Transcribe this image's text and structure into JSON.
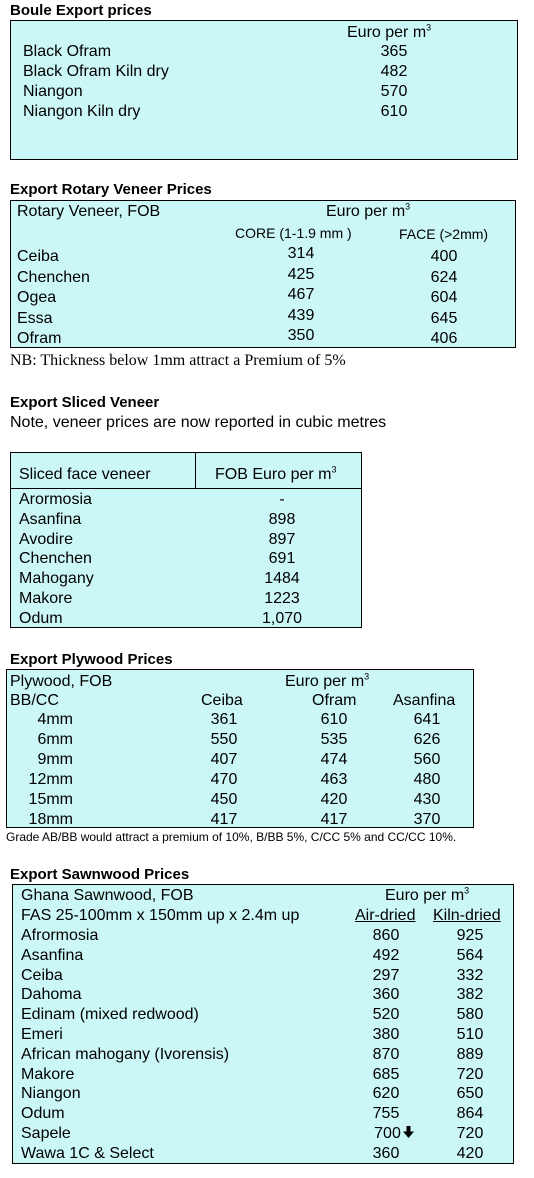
{
  "boule": {
    "title": "Boule Export prices",
    "unit_label": "Euro per m",
    "unit_sup": "3",
    "rows": [
      {
        "name": "Black Ofram",
        "value": "365"
      },
      {
        "name": "Black Ofram  Kiln dry",
        "value": "482"
      },
      {
        "name": "Niangon",
        "value": "570"
      },
      {
        "name": "Niangon Kiln dry",
        "value": "610"
      }
    ]
  },
  "rotary": {
    "title": "Export Rotary Veneer Prices",
    "header_label": "Rotary Veneer,  FOB",
    "unit_label": "Euro  per m",
    "unit_sup": "3",
    "col_core": "CORE (1-1.9 mm )",
    "col_face": "FACE (>2mm)",
    "rows": [
      {
        "name": "Ceiba",
        "core": "314",
        "face": "400"
      },
      {
        "name": "Chenchen",
        "core": "425",
        "face": "624"
      },
      {
        "name": "Ogea",
        "core": "467",
        "face": "604"
      },
      {
        "name": "Essa",
        "core": "439",
        "face": "645"
      },
      {
        "name": "Ofram",
        "core": "350",
        "face": "406"
      }
    ],
    "note": "NB: Thickness below 1mm attract a Premium of 5%"
  },
  "sliced": {
    "title": "Export Sliced Veneer",
    "note": "Note, veneer prices are now reported in cubic metres",
    "col_name": "Sliced face veneer",
    "col_value": "FOB Euro per m",
    "col_value_sup": "3",
    "rows": [
      {
        "name": "Arormosia",
        "value": "-"
      },
      {
        "name": "Asanfina",
        "value": "898"
      },
      {
        "name": "Avodire",
        "value": "897"
      },
      {
        "name": "Chenchen",
        "value": "691"
      },
      {
        "name": "Mahogany",
        "value": "1484"
      },
      {
        "name": "Makore",
        "value": "1223"
      },
      {
        "name": "Odum",
        "value": "1,070"
      }
    ]
  },
  "plywood": {
    "title": "Export Plywood Prices",
    "header_label": "Plywood, FOB",
    "unit_label": "Euro per m",
    "unit_sup": "3",
    "grade": "BB/CC",
    "col1": "Ceiba",
    "col2": "Ofram",
    "col3": "Asanfina",
    "rows": [
      {
        "size": "4mm",
        "ceiba": "361",
        "ofram": "610",
        "asanfina": "641"
      },
      {
        "size": "6mm",
        "ceiba": "550",
        "ofram": "535",
        "asanfina": "626"
      },
      {
        "size": "9mm",
        "ceiba": "407",
        "ofram": "474",
        "asanfina": "560"
      },
      {
        "size": "12mm",
        "ceiba": "470",
        "ofram": "463",
        "asanfina": "480"
      },
      {
        "size": "15mm",
        "ceiba": "450",
        "ofram": "420",
        "asanfina": "430"
      },
      {
        "size": "18mm",
        "ceiba": "417",
        "ofram": "417",
        "asanfina": "370"
      }
    ],
    "note": "Grade AB/BB would attract a premium of 10%, B/BB 5%, C/CC 5% and CC/CC 10%."
  },
  "sawn": {
    "title": "Export Sawnwood Prices",
    "header_label": "Ghana Sawnwood, FOB",
    "unit_label": "Euro per m",
    "unit_sup": "3",
    "spec": "FAS 25-100mm x 150mm up x 2.4m up",
    "col_air": "Air-dried",
    "col_kiln": "Kiln-dried",
    "rows": [
      {
        "name": "Afrormosia",
        "air": "860",
        "kiln": "925"
      },
      {
        "name": "Asanfina",
        "air": "492",
        "kiln": "564"
      },
      {
        "name": "Ceiba",
        "air": "297",
        "kiln": "332"
      },
      {
        "name": "Dahoma",
        "air": "360",
        "kiln": "382"
      },
      {
        "name": "Edinam (mixed redwood)",
        "air": "520",
        "kiln": "580"
      },
      {
        "name": "Emeri",
        "air": "380",
        "kiln": "510"
      },
      {
        "name": "African mahogany (Ivorensis)",
        "air": "870",
        "kiln": "889"
      },
      {
        "name": "Makore",
        "air": "685",
        "kiln": "720"
      },
      {
        "name": "Niangon",
        "air": "620",
        "kiln": "650"
      },
      {
        "name": "Odum",
        "air": "755",
        "kiln": "864"
      },
      {
        "name": "Sapele",
        "air": "700",
        "kiln": "720",
        "air_icon": "down-arrow-icon"
      },
      {
        "name": "Wawa 1C & Select",
        "air": "360",
        "kiln": "420"
      }
    ]
  }
}
